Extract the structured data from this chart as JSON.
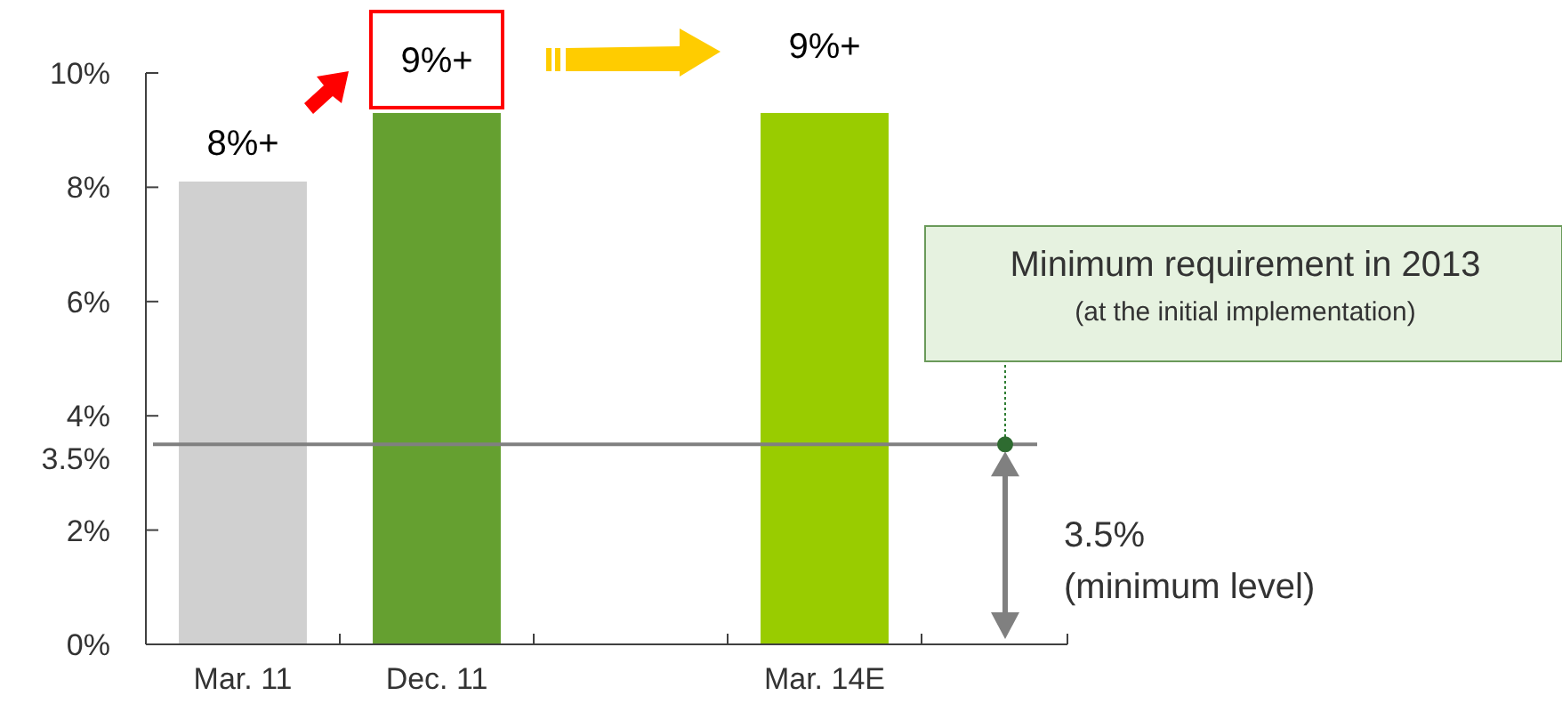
{
  "chart_data": {
    "type": "bar",
    "categories": [
      "Mar. 11",
      "Dec. 11",
      null,
      "Mar. 14E"
    ],
    "values": [
      8.1,
      9.3,
      null,
      9.3
    ],
    "colors": [
      "#d0d0d0",
      "#65a030",
      null,
      "#99cc00"
    ],
    "value_labels": [
      "8%+",
      "9%+",
      null,
      "9%+"
    ],
    "ylim": [
      0,
      10
    ],
    "yticks": [
      {
        "value": 0,
        "label": "0%"
      },
      {
        "value": 2,
        "label": "2%"
      },
      {
        "value": 4,
        "label": "4%"
      },
      {
        "value": 6,
        "label": "6%"
      },
      {
        "value": 8,
        "label": "8%"
      },
      {
        "value": 10,
        "label": "10%"
      }
    ],
    "ref_lines": [
      {
        "axis": "y",
        "value": 3.5,
        "label": "3.5%",
        "color": "#808080"
      }
    ],
    "annotations": [
      "Minimum requirement in 2013\n(at the initial implementation)",
      "3.5%\n(minimum level)"
    ],
    "grid": false
  }
}
